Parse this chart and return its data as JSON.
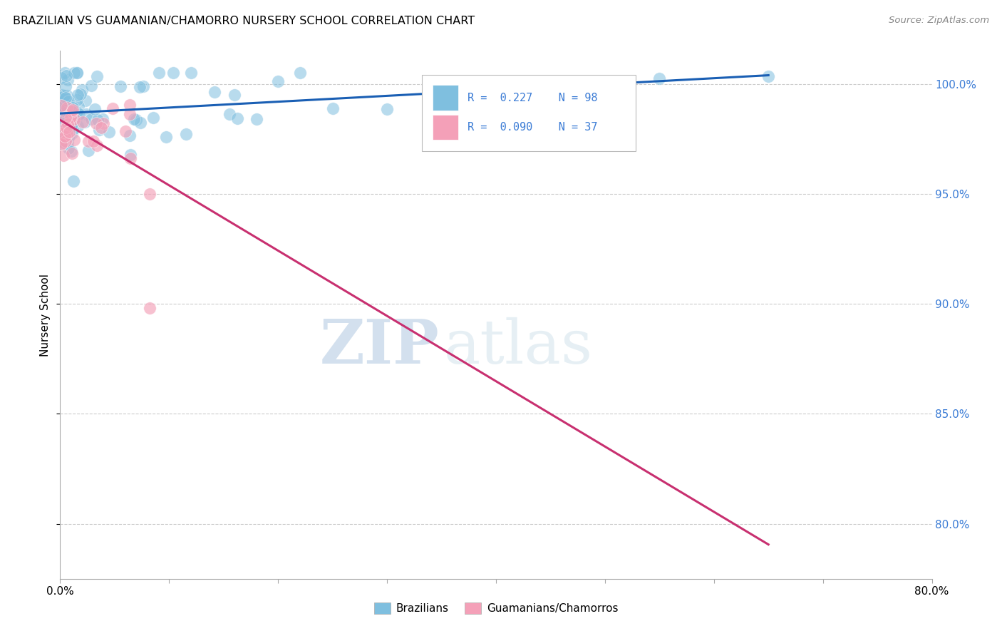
{
  "title": "BRAZILIAN VS GUAMANIAN/CHAMORRO NURSERY SCHOOL CORRELATION CHART",
  "source": "Source: ZipAtlas.com",
  "ylabel": "Nursery School",
  "ytick_labels": [
    "100.0%",
    "95.0%",
    "90.0%",
    "85.0%",
    "80.0%"
  ],
  "ytick_values": [
    1.0,
    0.95,
    0.9,
    0.85,
    0.8
  ],
  "xlim": [
    0.0,
    0.8
  ],
  "ylim": [
    0.775,
    1.015
  ],
  "R_brazilian": 0.227,
  "N_brazilian": 98,
  "R_guamanian": 0.09,
  "N_guamanian": 37,
  "legend_label_1": "Brazilians",
  "legend_label_2": "Guamanians/Chamorros",
  "color_blue": "#7fbfdf",
  "color_pink": "#f4a0b8",
  "trendline_blue": "#1a5fb4",
  "trendline_pink": "#c83070",
  "background_color": "#ffffff",
  "watermark_zip": "ZIP",
  "watermark_atlas": "atlas"
}
